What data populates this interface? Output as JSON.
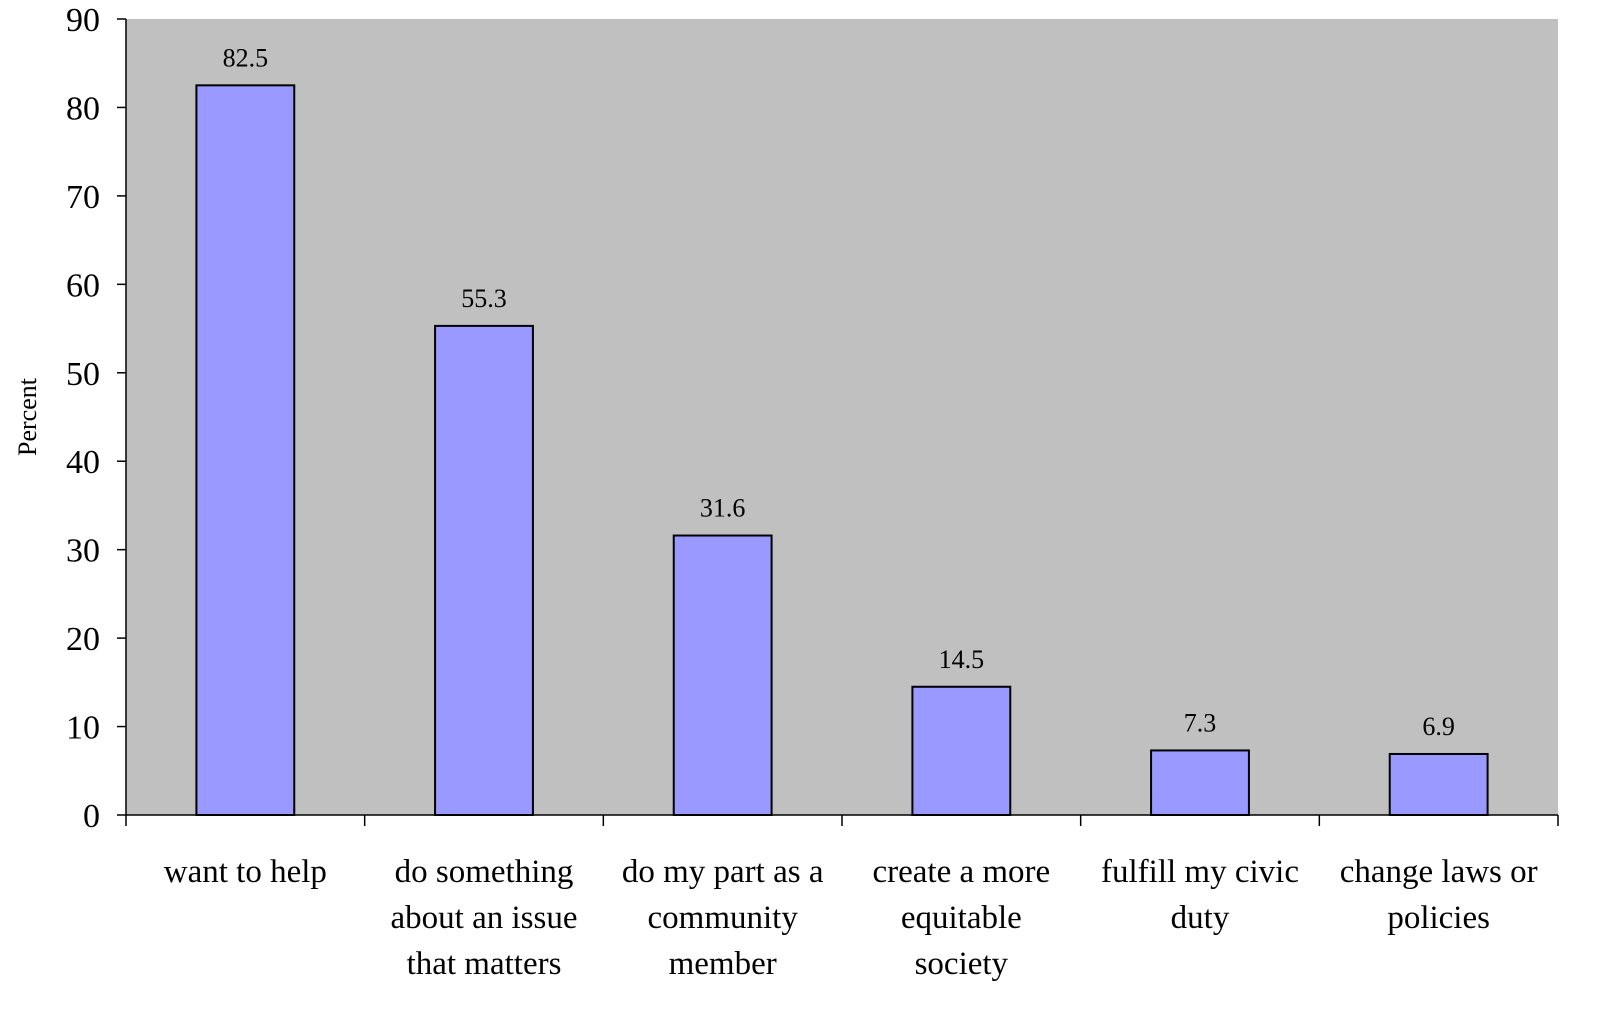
{
  "chart_data": {
    "type": "bar",
    "title": "",
    "xlabel": "",
    "ylabel": "Percent",
    "ylim": [
      0,
      90
    ],
    "yticks": [
      0,
      10,
      20,
      30,
      40,
      50,
      60,
      70,
      80,
      90
    ],
    "grid": false,
    "legend": "none",
    "categories": [
      [
        "want to help"
      ],
      [
        "do something",
        "about an issue",
        "that matters"
      ],
      [
        "do my part as a",
        "community",
        "member"
      ],
      [
        "create a more",
        "equitable",
        "society"
      ],
      [
        "fulfill my civic",
        "duty"
      ],
      [
        "change laws or",
        "policies"
      ]
    ],
    "values": [
      82.5,
      55.3,
      31.6,
      14.5,
      7.3,
      6.9
    ],
    "value_labels": [
      "82.5",
      "55.3",
      "31.6",
      "14.5",
      "7.3",
      "6.9"
    ],
    "colors": {
      "plot_background": "#c0c0c0",
      "bar_fill": "#9999ff",
      "bar_stroke": "#000000",
      "axis": "#000000"
    }
  }
}
